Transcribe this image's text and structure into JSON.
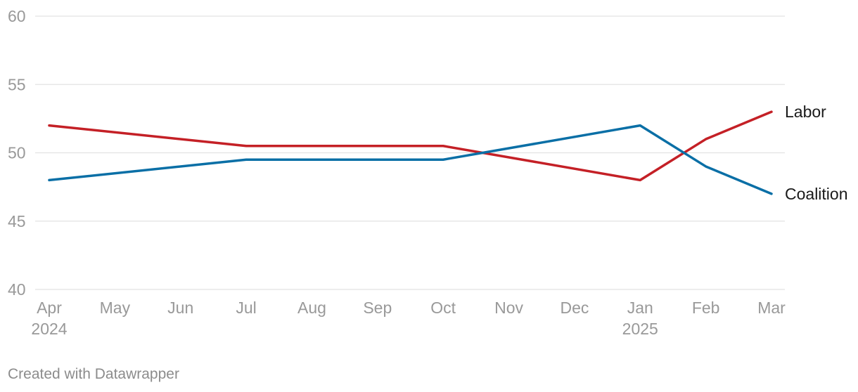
{
  "chart_data": {
    "type": "line",
    "title": "",
    "xlabel": "",
    "ylabel": "",
    "ylim": [
      40,
      60
    ],
    "yticks": [
      40,
      45,
      50,
      55,
      60
    ],
    "x_tick_labels": [
      {
        "month": "Apr",
        "year": "2024"
      },
      {
        "month": "May",
        "year": ""
      },
      {
        "month": "Jun",
        "year": ""
      },
      {
        "month": "Jul",
        "year": ""
      },
      {
        "month": "Aug",
        "year": ""
      },
      {
        "month": "Sep",
        "year": ""
      },
      {
        "month": "Oct",
        "year": ""
      },
      {
        "month": "Nov",
        "year": ""
      },
      {
        "month": "Dec",
        "year": ""
      },
      {
        "month": "Jan",
        "year": "2025"
      },
      {
        "month": "Feb",
        "year": ""
      },
      {
        "month": "Mar",
        "year": ""
      }
    ],
    "grid": true,
    "legend": "direct labels at line ends",
    "series": [
      {
        "name": "Labor",
        "color": "#c42026",
        "points": [
          {
            "x": "2024-04",
            "y": 52
          },
          {
            "x": "2024-07",
            "y": 50.5
          },
          {
            "x": "2024-10",
            "y": 50.5
          },
          {
            "x": "2025-01",
            "y": 48
          },
          {
            "x": "2025-02",
            "y": 51
          },
          {
            "x": "2025-03",
            "y": 53
          }
        ]
      },
      {
        "name": "Coalition",
        "color": "#0a6fa6",
        "points": [
          {
            "x": "2024-04",
            "y": 48
          },
          {
            "x": "2024-07",
            "y": 49.5
          },
          {
            "x": "2024-10",
            "y": 49.5
          },
          {
            "x": "2025-01",
            "y": 52
          },
          {
            "x": "2025-02",
            "y": 49
          },
          {
            "x": "2025-03",
            "y": 47
          }
        ]
      }
    ]
  },
  "footer": {
    "credit": "Created with Datawrapper"
  }
}
